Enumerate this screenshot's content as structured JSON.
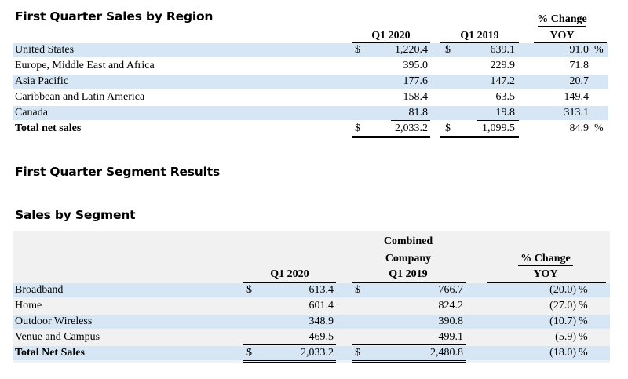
{
  "region_table": {
    "title": "First Quarter Sales by Region",
    "col_q1_2020": "Q1 2020",
    "col_q1_2019": "Q1 2019",
    "col_change_1": "% Change",
    "col_change_2": "YOY",
    "currency": "$",
    "pct": "%",
    "rows": [
      {
        "label": "United States",
        "q1_2020": "1,220.4",
        "q1_2019": "639.1",
        "change": "91.0"
      },
      {
        "label": "Europe, Middle East and Africa",
        "q1_2020": "395.0",
        "q1_2019": "229.9",
        "change": "71.8"
      },
      {
        "label": "Asia Pacific",
        "q1_2020": "177.6",
        "q1_2019": "147.2",
        "change": "20.7"
      },
      {
        "label": "Caribbean and Latin America",
        "q1_2020": "158.4",
        "q1_2019": "63.5",
        "change": "149.4"
      },
      {
        "label": "Canada",
        "q1_2020": "81.8",
        "q1_2019": "19.8",
        "change": "313.1"
      }
    ],
    "total": {
      "label": "Total net sales",
      "q1_2020": "2,033.2",
      "q1_2019": "1,099.5",
      "change": "84.9"
    }
  },
  "segment_section": {
    "title": "First Quarter Segment Results",
    "subtitle": "Sales by Segment"
  },
  "segment_table": {
    "col_q1_2020": "Q1 2020",
    "col_combined_1": "Combined",
    "col_combined_2": "Company",
    "col_combined_3": "Q1 2019",
    "col_change_1": "% Change",
    "col_change_2": "YOY",
    "currency": "$",
    "pct": "%",
    "rows": [
      {
        "label": "Broadband",
        "q1_2020": "613.4",
        "q1_2019": "766.7",
        "change": "(20.0)"
      },
      {
        "label": "Home",
        "q1_2020": "601.4",
        "q1_2019": "824.2",
        "change": "(27.0)"
      },
      {
        "label": "Outdoor Wireless",
        "q1_2020": "348.9",
        "q1_2019": "390.8",
        "change": "(10.7)"
      },
      {
        "label": "Venue and Campus",
        "q1_2020": "469.5",
        "q1_2019": "499.1",
        "change": "(5.9)"
      }
    ],
    "total": {
      "label": "Total Net Sales",
      "q1_2020": "2,033.2",
      "q1_2019": "2,480.8",
      "change": "(18.0)"
    }
  }
}
